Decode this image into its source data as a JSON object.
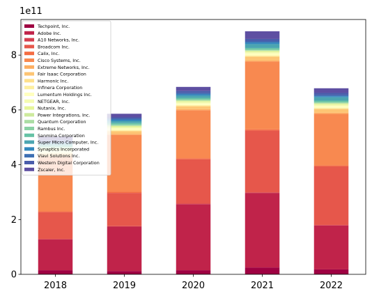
{
  "chart_data": {
    "type": "bar",
    "stacked": true,
    "categories": [
      "2018",
      "2019",
      "2020",
      "2021",
      "2022"
    ],
    "y_scale_label": "1e11",
    "y_tick_labels": [
      "0",
      "2",
      "4",
      "6",
      "8"
    ],
    "y_ticks": [
      0,
      2,
      4,
      6,
      8
    ],
    "ylim": [
      0,
      9.3
    ],
    "units_multiplier": 100000000000.0,
    "legend_position": "upper-left",
    "grid": false,
    "series": [
      {
        "name": "Techpoint, Inc.",
        "color": "#9e0142",
        "values": [
          0.15,
          0.12,
          0.15,
          0.25,
          0.18
        ]
      },
      {
        "name": "Adobe Inc.",
        "color": "#c0234a",
        "values": [
          1.12,
          1.62,
          2.41,
          2.72,
          1.6
        ]
      },
      {
        "name": "A10 Networks, Inc.",
        "color": "#d53e4f",
        "values": [
          0.02,
          0.02,
          0.02,
          0.02,
          0.02
        ]
      },
      {
        "name": "Broadcom Inc.",
        "color": "#e6574b",
        "values": [
          0.98,
          1.21,
          1.62,
          2.26,
          2.14
        ]
      },
      {
        "name": "Calix, Inc.",
        "color": "#f46d43",
        "values": [
          0.03,
          0.04,
          0.04,
          0.04,
          0.04
        ]
      },
      {
        "name": "Cisco Systems, Inc.",
        "color": "#f88950",
        "values": [
          1.98,
          2.08,
          1.75,
          2.48,
          1.88
        ]
      },
      {
        "name": "Extreme Networks, Inc.",
        "color": "#fdae61",
        "values": [
          0.04,
          0.04,
          0.04,
          0.04,
          0.04
        ]
      },
      {
        "name": "Fair Isaac Corporation",
        "color": "#fdc574",
        "values": [
          0.08,
          0.09,
          0.1,
          0.13,
          0.13
        ]
      },
      {
        "name": "Harmonic Inc.",
        "color": "#fee08b",
        "values": [
          0.02,
          0.02,
          0.02,
          0.02,
          0.02
        ]
      },
      {
        "name": "Infinera Corporation",
        "color": "#fdefa0",
        "values": [
          0.03,
          0.03,
          0.03,
          0.03,
          0.03
        ]
      },
      {
        "name": "Lumentum Holdings Inc.",
        "color": "#ffffbf",
        "values": [
          0.05,
          0.05,
          0.06,
          0.07,
          0.06
        ]
      },
      {
        "name": "NETGEAR, Inc.",
        "color": "#f5fbb1",
        "values": [
          0.04,
          0.04,
          0.04,
          0.04,
          0.04
        ]
      },
      {
        "name": "Nutanix, Inc.",
        "color": "#e6f598",
        "values": [
          0.04,
          0.04,
          0.04,
          0.04,
          0.04
        ]
      },
      {
        "name": "Power Integrations, Inc.",
        "color": "#cdea9d",
        "values": [
          0.02,
          0.02,
          0.02,
          0.02,
          0.02
        ]
      },
      {
        "name": "Quantum Corporation",
        "color": "#abdda4",
        "values": [
          0.02,
          0.02,
          0.02,
          0.02,
          0.02
        ]
      },
      {
        "name": "Rambus Inc.",
        "color": "#8ad1a4",
        "values": [
          0.03,
          0.03,
          0.03,
          0.03,
          0.03
        ]
      },
      {
        "name": "Sanmina Corporation",
        "color": "#66c2a5",
        "values": [
          0.05,
          0.05,
          0.05,
          0.05,
          0.05
        ]
      },
      {
        "name": "Super Micro Computer, Inc.",
        "color": "#4ba5b1",
        "values": [
          0.06,
          0.07,
          0.08,
          0.14,
          0.12
        ]
      },
      {
        "name": "Synaptics Incorporated",
        "color": "#3288bd",
        "values": [
          0.04,
          0.05,
          0.05,
          0.06,
          0.04
        ]
      },
      {
        "name": "Viavi Solutions Inc.",
        "color": "#3d6fb3",
        "values": [
          0.03,
          0.04,
          0.04,
          0.04,
          0.04
        ]
      },
      {
        "name": "Western Digital Corporation",
        "color": "#4a5dab",
        "values": [
          0.07,
          0.05,
          0.08,
          0.09,
          0.08
        ]
      },
      {
        "name": "Zscaler, Inc.",
        "color": "#5e4fa2",
        "values": [
          0.13,
          0.13,
          0.15,
          0.28,
          0.17
        ]
      }
    ]
  }
}
